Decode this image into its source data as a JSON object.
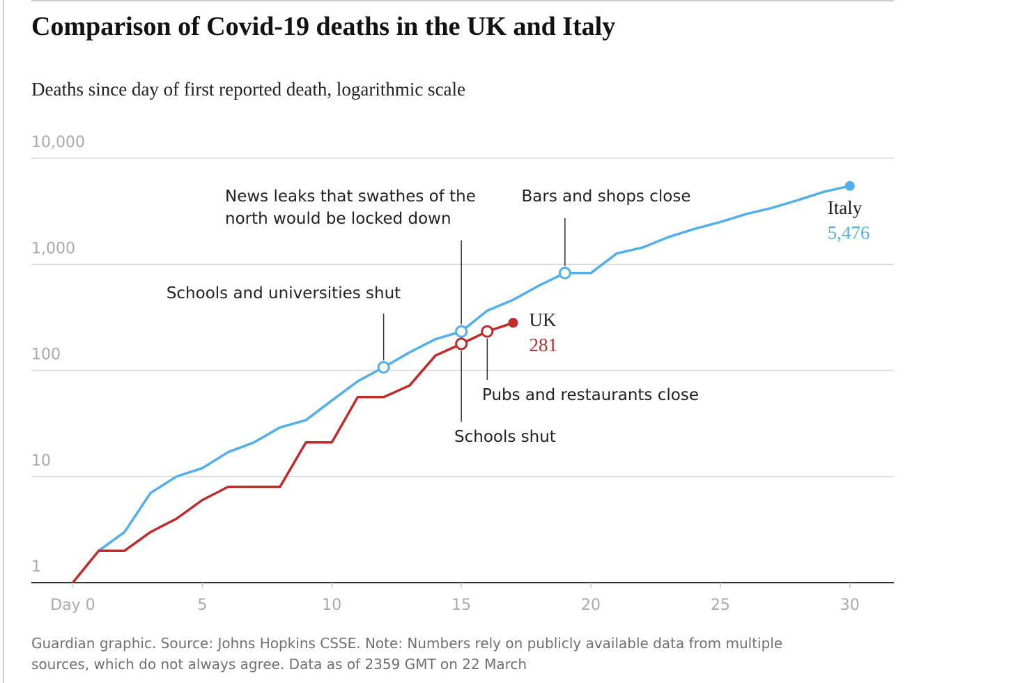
{
  "chart_data": {
    "type": "line",
    "title": "Comparison of Covid-19 deaths in the UK and Italy",
    "subtitle": "Deaths since day of first reported death, logarithmic scale",
    "footnote": [
      "Guardian graphic. Source: Johns Hopkins CSSE. Note: Numbers rely on publicly available data from multiple",
      "sources, which do not always agree. Data as of 2359 GMT on 22 March"
    ],
    "log_y": true,
    "grid": true,
    "xlim": [
      -1.6,
      31.7
    ],
    "ylim": [
      1,
      10000
    ],
    "xticks": [
      {
        "value": 0,
        "label": "Day 0"
      },
      5,
      10,
      15,
      20,
      25,
      30
    ],
    "yticks": [
      {
        "value": 10000,
        "label": "10,000"
      },
      {
        "value": 1000,
        "label": "1,000"
      },
      100,
      10,
      1
    ],
    "x": [
      0,
      1,
      2,
      3,
      4,
      5,
      6,
      7,
      8,
      9,
      10,
      11,
      12,
      13,
      14,
      15,
      16,
      17,
      18,
      19,
      20,
      21,
      22,
      23,
      24,
      25,
      26,
      27,
      28,
      29,
      30
    ],
    "series": [
      {
        "name": "Italy",
        "color": "#51b0eb",
        "values": [
          null,
          2,
          3,
          7,
          10,
          12,
          17,
          21,
          29,
          34,
          52,
          79,
          107,
          148,
          197,
          233,
          366,
          463,
          631,
          827,
          827,
          1266,
          1441,
          1809,
          2158,
          2503,
          2978,
          3405,
          4032,
          4825,
          5476
        ],
        "value_labels": [
          null,
          null,
          null,
          null,
          null,
          null,
          null,
          null,
          null,
          null,
          null,
          null,
          null,
          null,
          null,
          null,
          null,
          null,
          null,
          null,
          null,
          null,
          null,
          null,
          null,
          null,
          null,
          null,
          null,
          null,
          "5,476"
        ],
        "annotations": [
          {
            "x": 12,
            "text": [
              "Schools and universities shut"
            ]
          },
          {
            "x": 15,
            "text": [
              "News leaks that swathes of the",
              "north would be locked down"
            ]
          },
          {
            "x": 19,
            "text": [
              "Bars and shops close"
            ]
          }
        ]
      },
      {
        "name": "UK",
        "color": "#c12b2b",
        "values": [
          1,
          2,
          2,
          3,
          4,
          6,
          8,
          8,
          8,
          21,
          21,
          56,
          56,
          72,
          138,
          178,
          233,
          281,
          null,
          null,
          null,
          null,
          null,
          null,
          null,
          null,
          null,
          null,
          null,
          null,
          null
        ],
        "value_labels": [
          null,
          null,
          null,
          null,
          null,
          null,
          null,
          null,
          null,
          null,
          null,
          null,
          null,
          null,
          null,
          null,
          null,
          "281",
          null,
          null,
          null,
          null,
          null,
          null,
          null,
          null,
          null,
          null,
          null,
          null,
          null
        ],
        "annotations": [
          {
            "x": 15,
            "text": [
              "Schools shut"
            ]
          },
          {
            "x": 16,
            "text": [
              "Pubs and restaurants close"
            ]
          }
        ]
      }
    ]
  }
}
